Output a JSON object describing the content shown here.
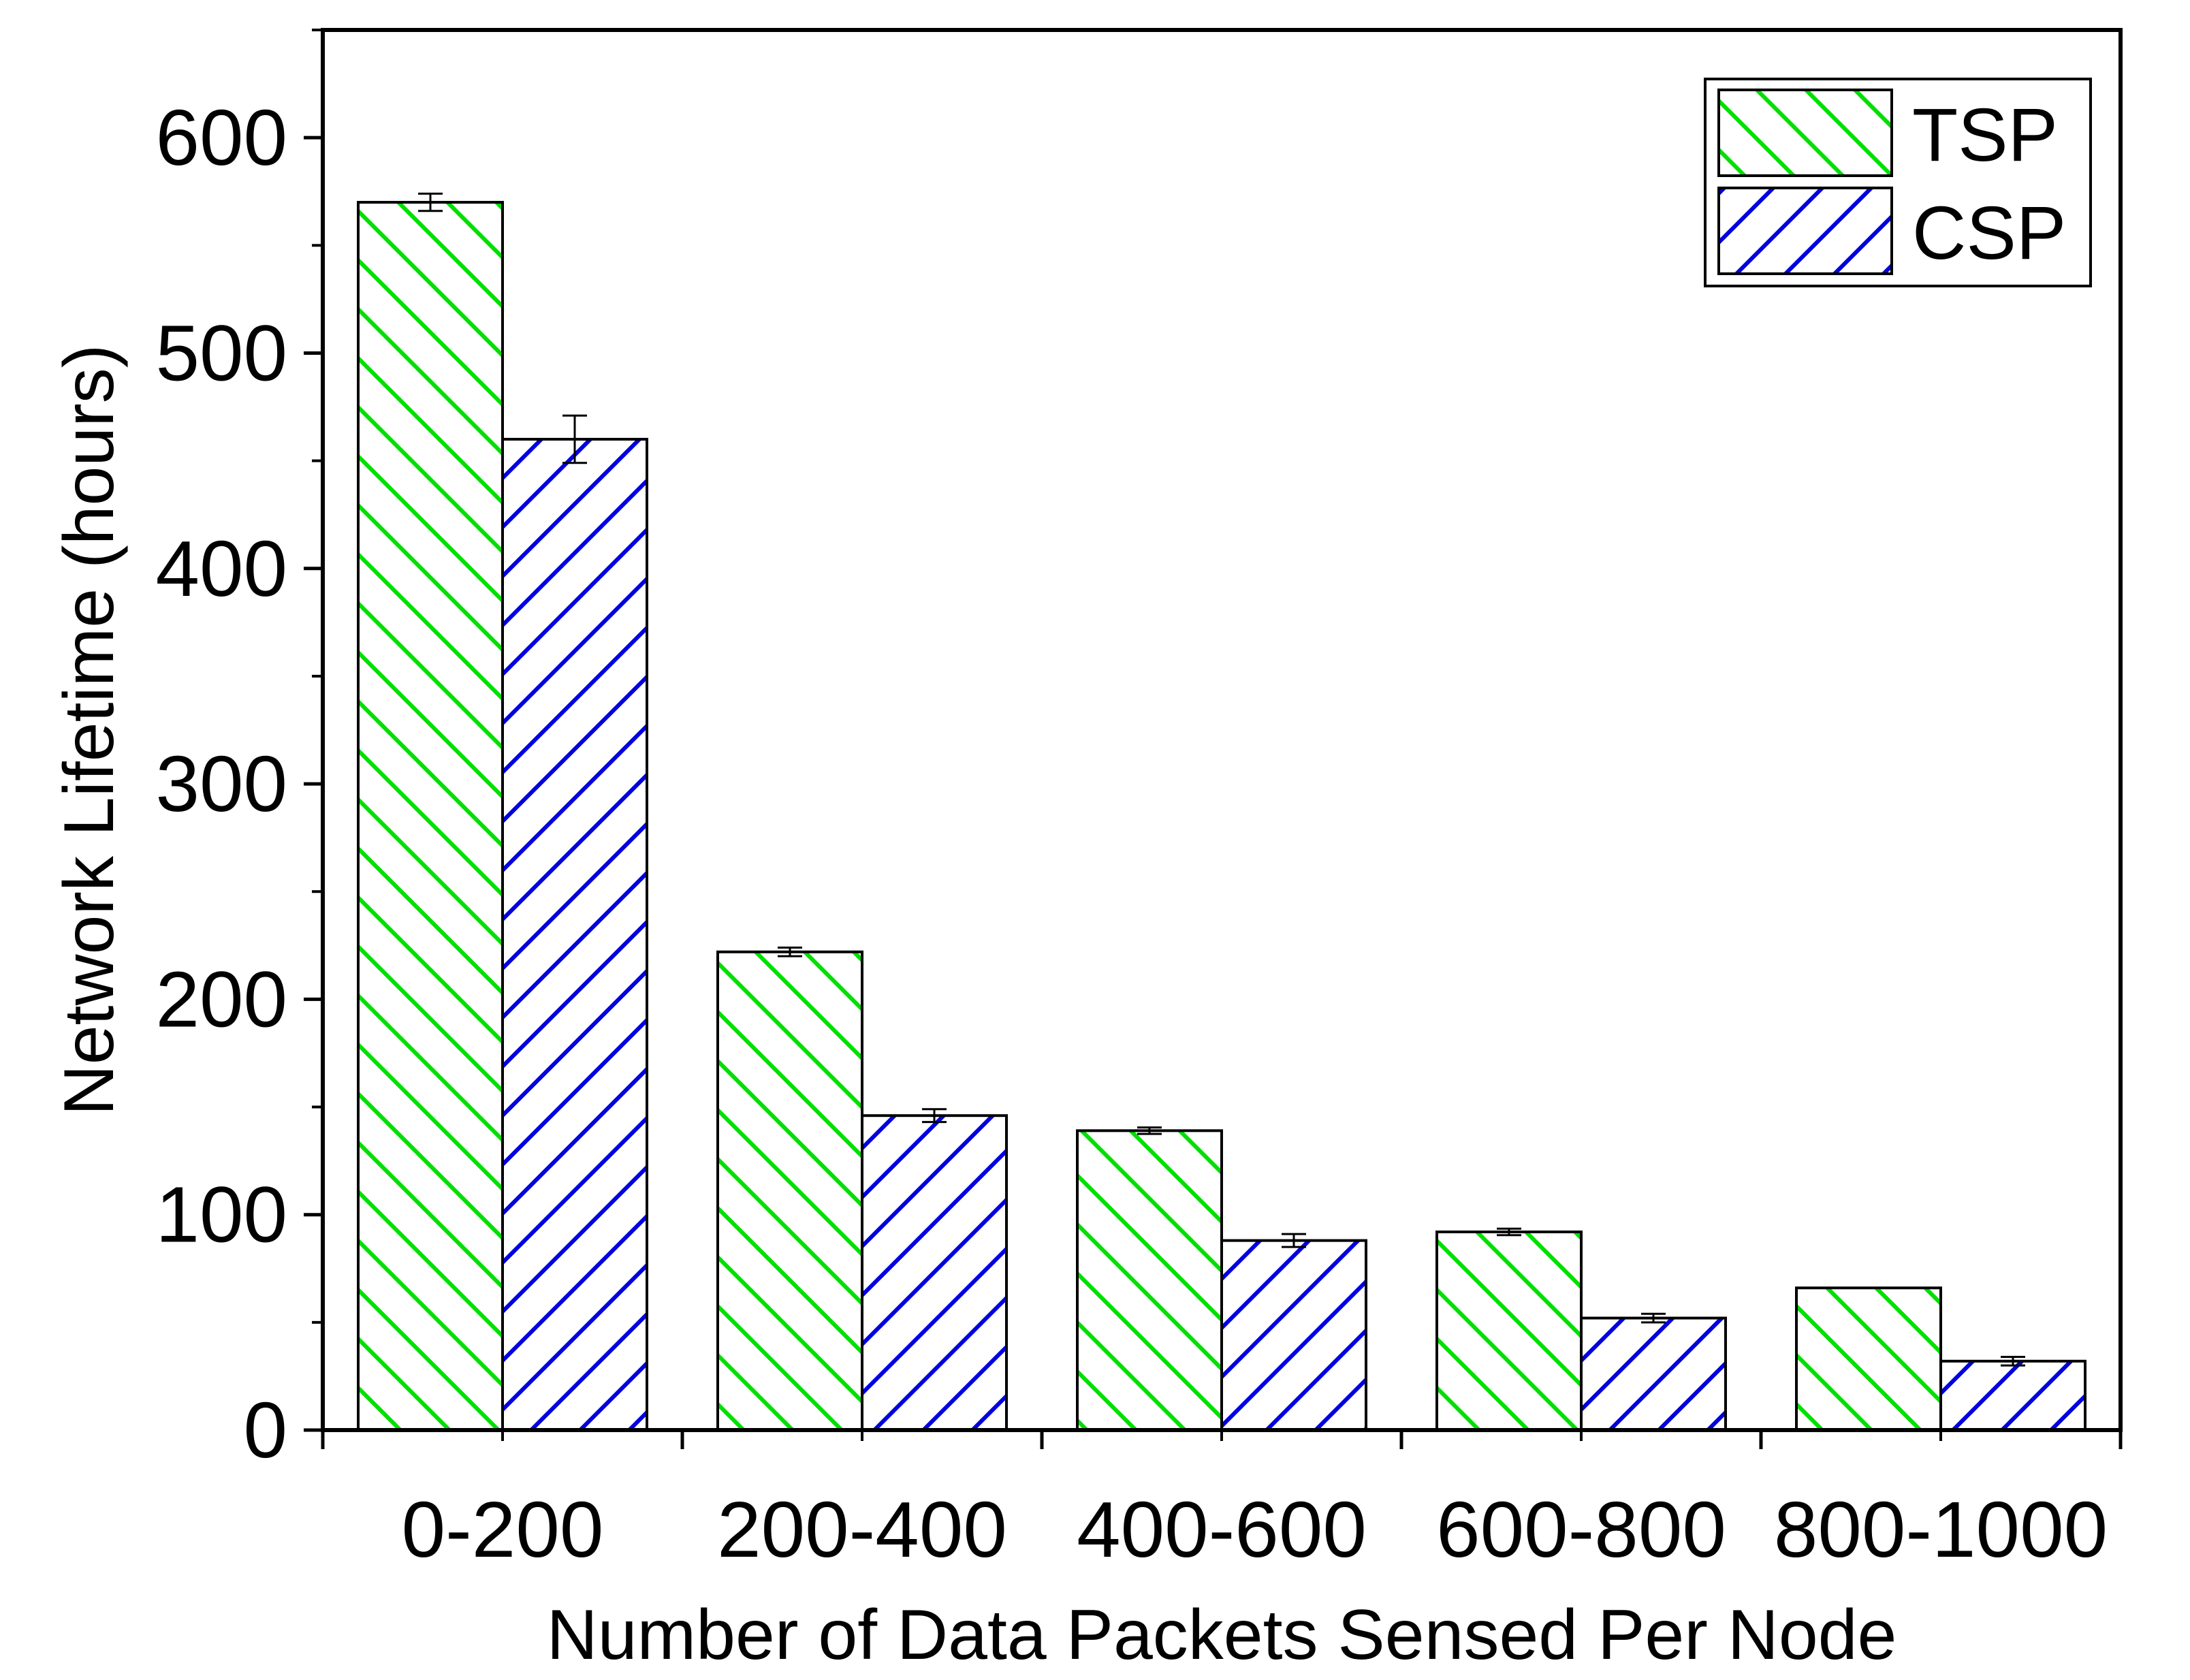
{
  "chart_data": {
    "type": "bar",
    "title": "",
    "xlabel": "Number of Data Packets Sensed Per Node",
    "ylabel": "Network Lifetime (hours)",
    "categories": [
      "0-200",
      "200-400",
      "400-600",
      "600-800",
      "800-1000"
    ],
    "ylim": [
      0,
      650
    ],
    "yticks": [
      0,
      100,
      200,
      300,
      400,
      500,
      600
    ],
    "ytick_labels": [
      "0",
      "100",
      "200",
      "300",
      "400",
      "500",
      "600"
    ],
    "grid": false,
    "legend_position": "top-right",
    "series": [
      {
        "name": "TSP",
        "color": "#00e000",
        "pattern": "diagonal-down",
        "values": [
          570,
          222,
          139,
          92,
          66
        ],
        "errors": [
          4,
          2,
          1.5,
          1.5,
          0
        ]
      },
      {
        "name": "CSP",
        "color": "#0000e0",
        "pattern": "diagonal-up",
        "values": [
          460,
          146,
          88,
          52,
          32
        ],
        "errors": [
          11,
          3,
          3,
          2,
          2
        ]
      }
    ]
  }
}
